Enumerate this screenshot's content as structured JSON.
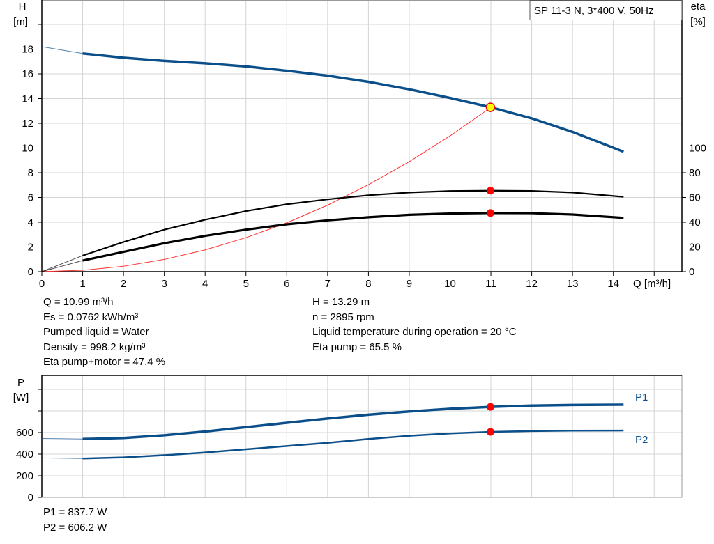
{
  "chart_data": [
    {
      "type": "line",
      "title": "SP 11-3 N, 3*400 V, 50Hz",
      "xlabel": "Q [m³/h]",
      "xlim": [
        0,
        15
      ],
      "xticks": [
        0,
        1,
        2,
        3,
        4,
        5,
        6,
        7,
        8,
        9,
        10,
        11,
        12,
        13,
        14
      ],
      "ylabel_left": {
        "name": "H",
        "unit": "[m]"
      },
      "ylim_left": [
        0,
        20
      ],
      "yticks_left": [
        0,
        2,
        4,
        6,
        8,
        10,
        12,
        14,
        16,
        18
      ],
      "ylabel_right": {
        "name": "eta",
        "unit": "[%]"
      },
      "ylim_right": [
        0,
        200
      ],
      "yticks_right": [
        0,
        20,
        40,
        60,
        80,
        100
      ],
      "grid": true,
      "series": [
        {
          "axis": "left",
          "color": "#0b4f8a",
          "x": [
            0,
            1,
            2,
            3,
            4,
            5,
            6,
            7,
            8,
            9,
            10,
            11,
            12,
            13,
            14.25
          ],
          "values": [
            18.2,
            17.65,
            17.3,
            17.05,
            16.85,
            16.6,
            16.25,
            15.85,
            15.35,
            14.75,
            14.05,
            13.29,
            12.4,
            11.3,
            9.7
          ]
        },
        {
          "axis": "right",
          "color": "#000000",
          "x": [
            0,
            1,
            2,
            3,
            4,
            5,
            6,
            7,
            8,
            9,
            10,
            11,
            12,
            13,
            14.25
          ],
          "values": [
            0,
            13,
            24,
            34,
            42,
            49,
            54.5,
            58.5,
            61.8,
            64,
            65.2,
            65.5,
            65.3,
            64,
            60.5
          ]
        },
        {
          "axis": "right",
          "color": "#000000",
          "x": [
            0,
            1,
            2,
            3,
            4,
            5,
            6,
            7,
            8,
            9,
            10,
            11,
            12,
            13,
            14.25
          ],
          "values": [
            0,
            9,
            16,
            23,
            29,
            34,
            38.3,
            41.5,
            44,
            46,
            47,
            47.4,
            47.3,
            46.2,
            43.5
          ]
        },
        {
          "axis": "left",
          "color": "#ff3030",
          "x": [
            0,
            1,
            2,
            3,
            4,
            5,
            6,
            7,
            8,
            9,
            10,
            11
          ],
          "values": [
            0,
            0.11,
            0.44,
            0.99,
            1.76,
            2.75,
            3.95,
            5.38,
            7.03,
            8.9,
            10.98,
            13.29
          ]
        }
      ],
      "duty_point": {
        "Q": 10.99,
        "H": 13.29,
        "eta_pump": 65.5,
        "eta_pump_motor": 47.4
      }
    },
    {
      "type": "line",
      "xlim": [
        0,
        15
      ],
      "ylabel": {
        "name": "P",
        "unit": "[W]"
      },
      "ylim": [
        0,
        1150
      ],
      "yticks": [
        0,
        200,
        400,
        600
      ],
      "grid": true,
      "series": [
        {
          "name": "P1",
          "color": "#0b4f8a",
          "x": [
            0,
            1,
            2,
            3,
            4,
            5,
            6,
            7,
            8,
            9,
            10,
            11,
            12,
            13,
            14.25
          ],
          "values": [
            545,
            540,
            550,
            575,
            610,
            650,
            690,
            730,
            765,
            795,
            820,
            837.7,
            850,
            856,
            858
          ]
        },
        {
          "name": "P2",
          "color": "#0b4f8a",
          "x": [
            0,
            1,
            2,
            3,
            4,
            5,
            6,
            7,
            8,
            9,
            10,
            11,
            12,
            13,
            14.25
          ],
          "values": [
            365,
            360,
            370,
            390,
            415,
            445,
            475,
            505,
            540,
            570,
            592,
            606.2,
            614,
            618,
            619
          ]
        }
      ],
      "duty_point": {
        "Q": 10.99,
        "P1": 837.7,
        "P2": 606.2
      }
    }
  ],
  "info_left": [
    "Q = 10.99 m³/h",
    "Es = 0.0762 kWh/m³",
    "Pumped liquid = Water",
    "Density = 998.2 kg/m³",
    "Eta pump+motor = 47.4 %"
  ],
  "info_right": [
    "H = 13.29 m",
    "n = 2895 rpm",
    "Liquid temperature during operation = 20 °C",
    "Eta pump = 65.5 %"
  ],
  "info_power": [
    "P1 = 837.7 W",
    "P2 = 606.2 W"
  ]
}
